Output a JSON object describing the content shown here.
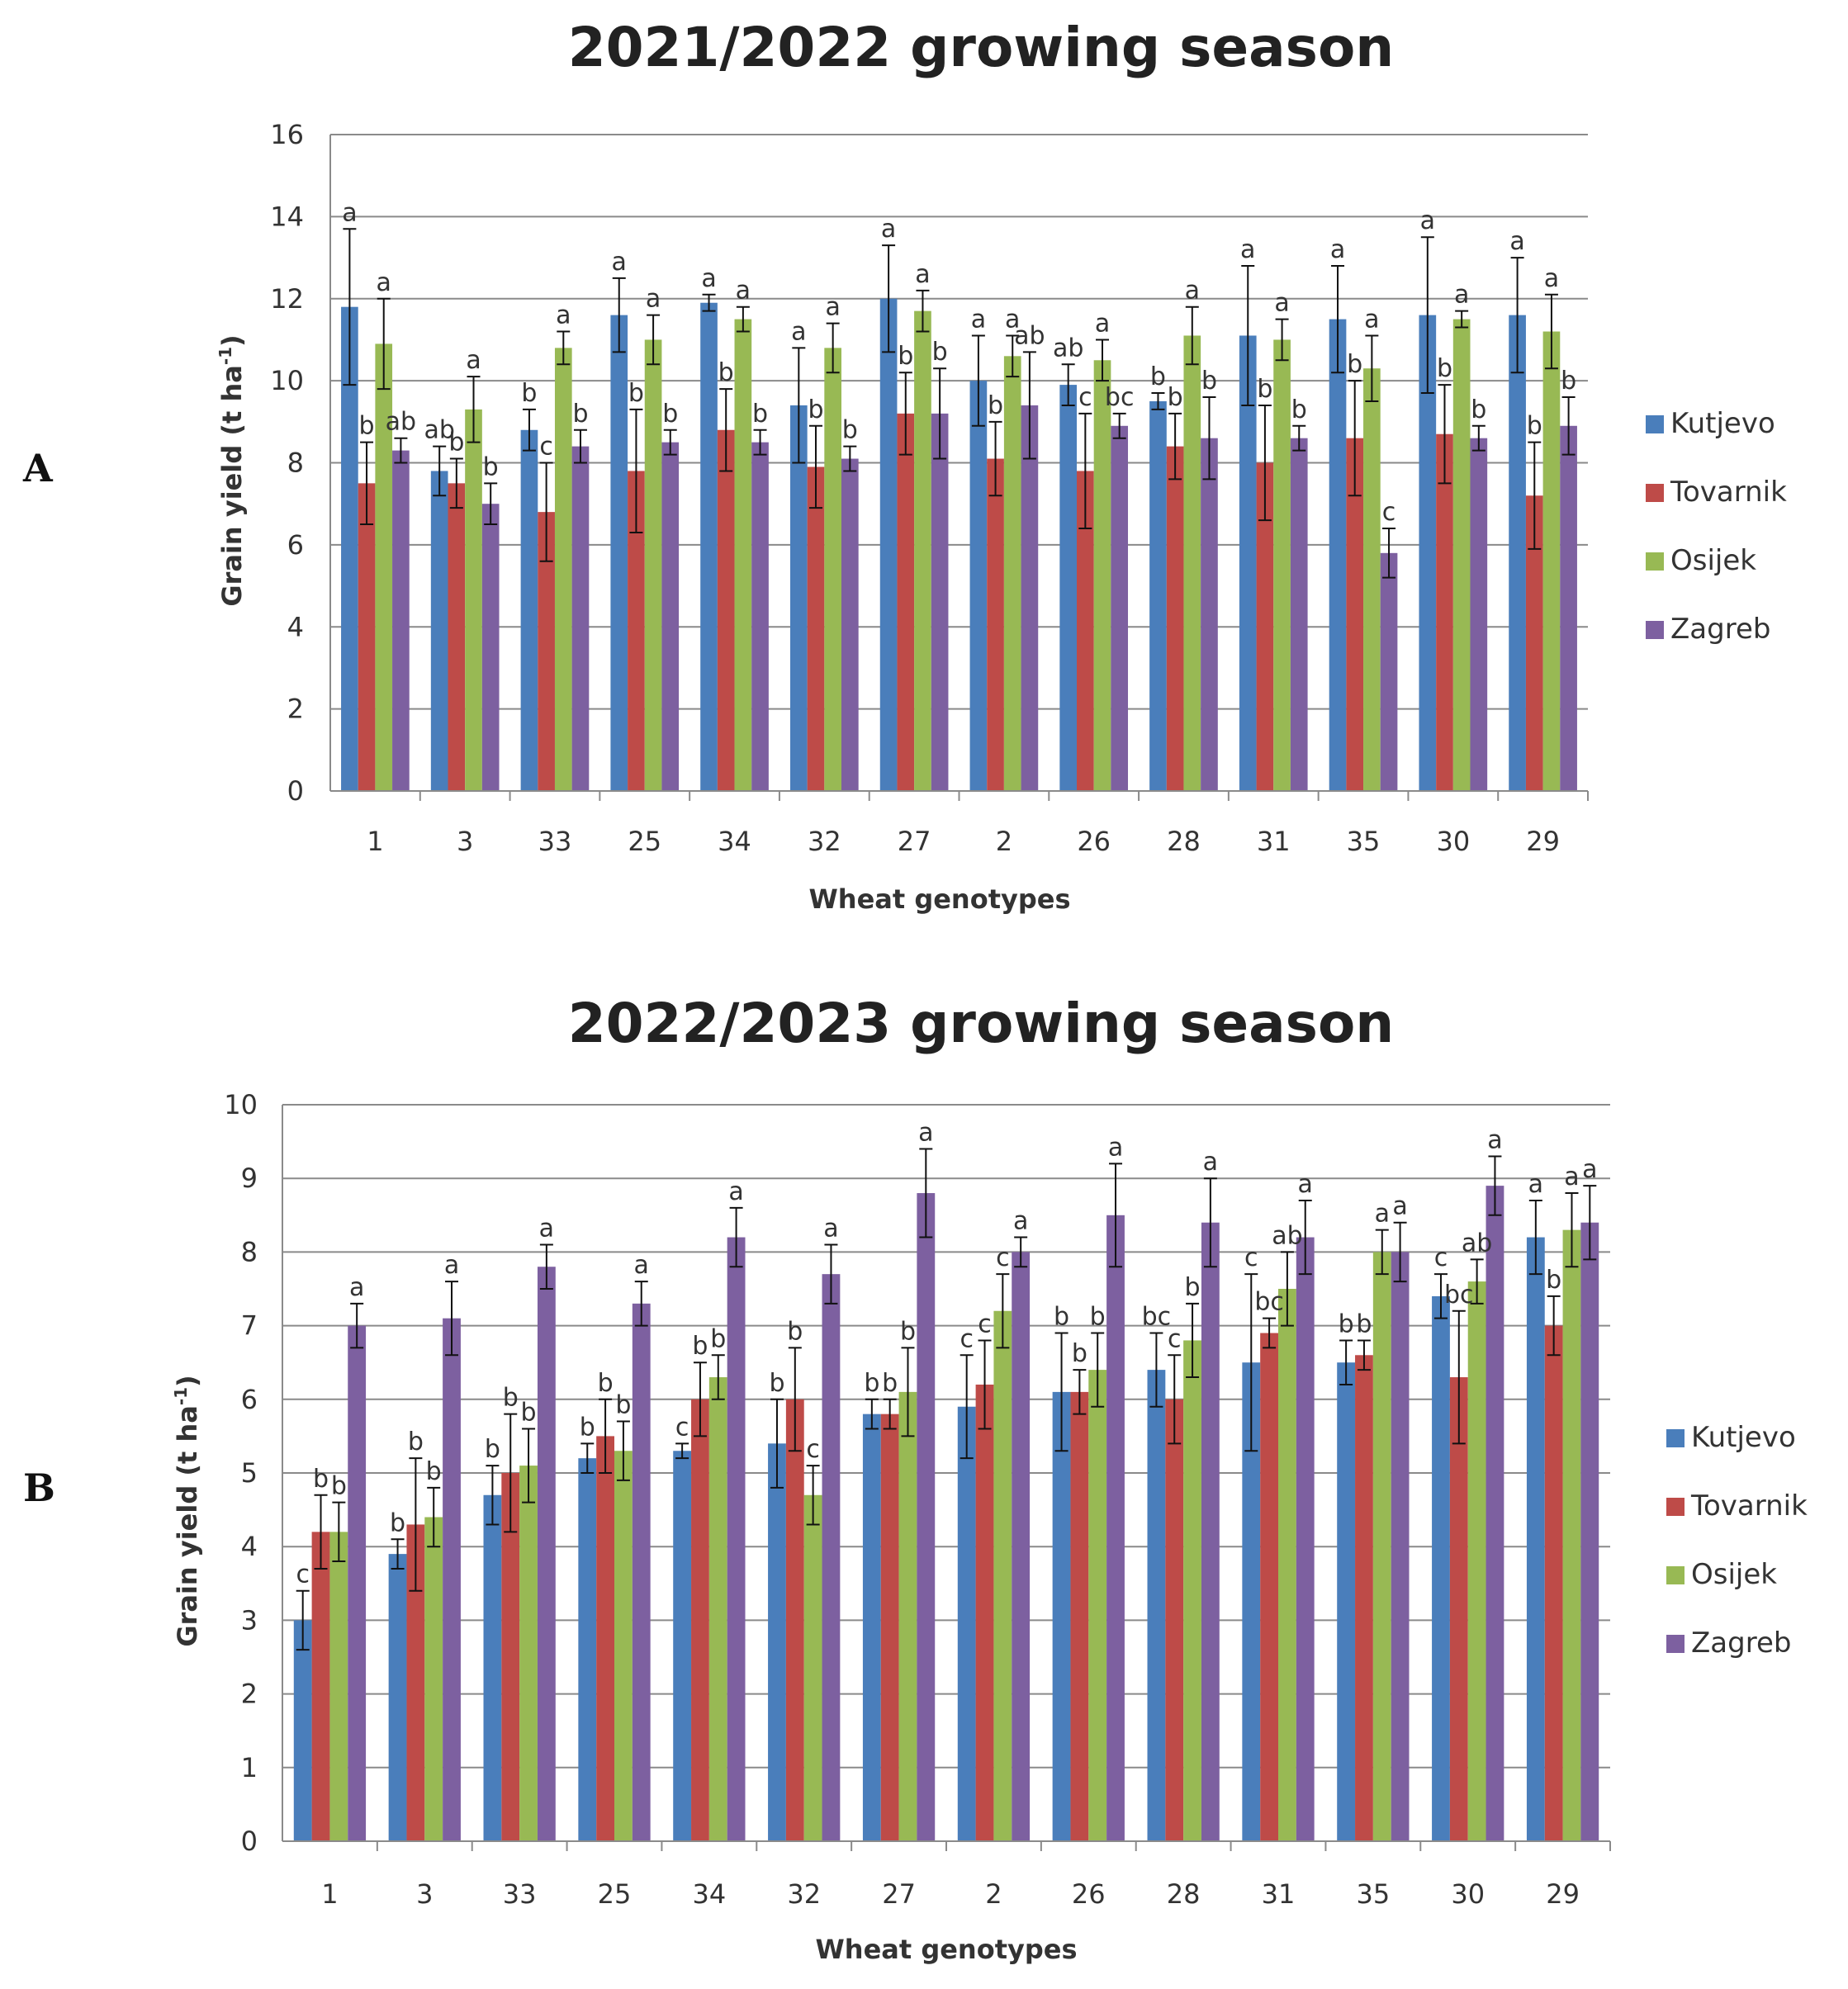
{
  "panel_labels": [
    "A",
    "B"
  ],
  "chart_data": [
    {
      "type": "bar",
      "title": "2021/2022 growing season",
      "xlabel": "Wheat genotypes",
      "ylabel": "Grain yield (t ha⁻¹)",
      "ylabel_main": "Grain yield (t ha",
      "ylabel_sup": "-1",
      "ylabel_close": ")",
      "ylim": [
        0,
        16
      ],
      "yticks": [
        0,
        2,
        4,
        6,
        8,
        10,
        12,
        14,
        16
      ],
      "grid": true,
      "legend_position": "right",
      "colors": [
        "#4a7ebb",
        "#be4b48",
        "#98b954",
        "#7d60a0"
      ],
      "categories": [
        "1",
        "3",
        "33",
        "25",
        "34",
        "32",
        "27",
        "2",
        "26",
        "28",
        "31",
        "35",
        "30",
        "29"
      ],
      "series": [
        {
          "name": "Kutjevo",
          "values": [
            11.8,
            7.8,
            8.8,
            11.6,
            11.9,
            9.4,
            12.0,
            10.0,
            9.9,
            9.5,
            11.1,
            11.5,
            11.6,
            11.6
          ],
          "errors": [
            1.9,
            0.6,
            0.5,
            0.9,
            0.2,
            1.4,
            1.3,
            1.1,
            0.5,
            0.2,
            1.7,
            1.3,
            1.9,
            1.4
          ],
          "labels": [
            "a",
            "ab",
            "b",
            "a",
            "a",
            "a",
            "a",
            "a",
            "ab",
            "b",
            "a",
            "a",
            "a",
            "a"
          ]
        },
        {
          "name": "Tovarnik",
          "values": [
            7.5,
            7.5,
            6.8,
            7.8,
            8.8,
            7.9,
            9.2,
            8.1,
            7.8,
            8.4,
            8.0,
            8.6,
            8.7,
            7.2
          ],
          "errors": [
            1.0,
            0.6,
            1.2,
            1.5,
            1.0,
            1.0,
            1.0,
            0.9,
            1.4,
            0.8,
            1.4,
            1.4,
            1.2,
            1.3
          ],
          "labels": [
            "b",
            "b",
            "c",
            "b",
            "b",
            "b",
            "b",
            "b",
            "c",
            "b",
            "b",
            "b",
            "b",
            "b"
          ]
        },
        {
          "name": "Osijek",
          "values": [
            10.9,
            9.3,
            10.8,
            11.0,
            11.5,
            10.8,
            11.7,
            10.6,
            10.5,
            11.1,
            11.0,
            10.3,
            11.5,
            11.2
          ],
          "errors": [
            1.1,
            0.8,
            0.4,
            0.6,
            0.3,
            0.6,
            0.5,
            0.5,
            0.5,
            0.7,
            0.5,
            0.8,
            0.2,
            0.9
          ],
          "labels": [
            "a",
            "a",
            "a",
            "a",
            "a",
            "a",
            "a",
            "a",
            "a",
            "a",
            "a",
            "a",
            "a",
            "a"
          ]
        },
        {
          "name": "Zagreb",
          "values": [
            8.3,
            7.0,
            8.4,
            8.5,
            8.5,
            8.1,
            9.2,
            9.4,
            8.9,
            8.6,
            8.6,
            5.8,
            8.6,
            8.9
          ],
          "errors": [
            0.3,
            0.5,
            0.4,
            0.3,
            0.3,
            0.3,
            1.1,
            1.3,
            0.3,
            1.0,
            0.3,
            0.6,
            0.3,
            0.7
          ],
          "labels": [
            "ab",
            "b",
            "b",
            "b",
            "b",
            "b",
            "b",
            "ab",
            "bc",
            "b",
            "b",
            "c",
            "b",
            "b"
          ]
        }
      ]
    },
    {
      "type": "bar",
      "title": "2022/2023 growing season",
      "xlabel": "Wheat genotypes",
      "ylabel": "Grain yield (t ha⁻¹)",
      "ylabel_main": "Grain yield (t ha",
      "ylabel_sup": "-1",
      "ylabel_close": ")",
      "ylim": [
        0,
        10
      ],
      "yticks": [
        0,
        1,
        2,
        3,
        4,
        5,
        6,
        7,
        8,
        9,
        10
      ],
      "grid": true,
      "legend_position": "right",
      "colors": [
        "#4a7ebb",
        "#be4b48",
        "#98b954",
        "#7d60a0"
      ],
      "categories": [
        "1",
        "3",
        "33",
        "25",
        "34",
        "32",
        "27",
        "2",
        "26",
        "28",
        "31",
        "35",
        "30",
        "29"
      ],
      "series": [
        {
          "name": "Kutjevo",
          "values": [
            3.0,
            3.9,
            4.7,
            5.2,
            5.3,
            5.4,
            5.8,
            5.9,
            6.1,
            6.4,
            6.5,
            6.5,
            7.4,
            8.2
          ],
          "errors": [
            0.4,
            0.2,
            0.4,
            0.2,
            0.1,
            0.6,
            0.2,
            0.7,
            0.8,
            0.5,
            1.2,
            0.3,
            0.3,
            0.5
          ],
          "labels": [
            "c",
            "b",
            "b",
            "b",
            "c",
            "b",
            "b",
            "c",
            "b",
            "bc",
            "c",
            "b",
            "c",
            "a"
          ]
        },
        {
          "name": "Tovarnik",
          "values": [
            4.2,
            4.3,
            5.0,
            5.5,
            6.0,
            6.0,
            5.8,
            6.2,
            6.1,
            6.0,
            6.9,
            6.6,
            6.3,
            7.0
          ],
          "errors": [
            0.5,
            0.9,
            0.8,
            0.5,
            0.5,
            0.7,
            0.2,
            0.6,
            0.3,
            0.6,
            0.2,
            0.2,
            0.9,
            0.4
          ],
          "labels": [
            "b",
            "b",
            "b",
            "b",
            "b",
            "b",
            "b",
            "c",
            "b",
            "c",
            "bc",
            "b",
            "bc",
            "b"
          ]
        },
        {
          "name": "Osijek",
          "values": [
            4.2,
            4.4,
            5.1,
            5.3,
            6.3,
            4.7,
            6.1,
            7.2,
            6.4,
            6.8,
            7.5,
            8.0,
            7.6,
            8.3
          ],
          "errors": [
            0.4,
            0.4,
            0.5,
            0.4,
            0.3,
            0.4,
            0.6,
            0.5,
            0.5,
            0.5,
            0.5,
            0.3,
            0.3,
            0.5
          ],
          "labels": [
            "b",
            "b",
            "b",
            "b",
            "b",
            "c",
            "b",
            "c",
            "b",
            "b",
            "ab",
            "a",
            "ab",
            "a"
          ]
        },
        {
          "name": "Zagreb",
          "values": [
            7.0,
            7.1,
            7.8,
            7.3,
            8.2,
            7.7,
            8.8,
            8.0,
            8.5,
            8.4,
            8.2,
            8.0,
            8.9,
            8.4
          ],
          "errors": [
            0.3,
            0.5,
            0.3,
            0.3,
            0.4,
            0.4,
            0.6,
            0.2,
            0.7,
            0.6,
            0.5,
            0.4,
            0.4,
            0.5
          ],
          "labels": [
            "a",
            "a",
            "a",
            "a",
            "a",
            "a",
            "a",
            "a",
            "a",
            "a",
            "a",
            "a",
            "a",
            "a"
          ]
        }
      ]
    }
  ]
}
